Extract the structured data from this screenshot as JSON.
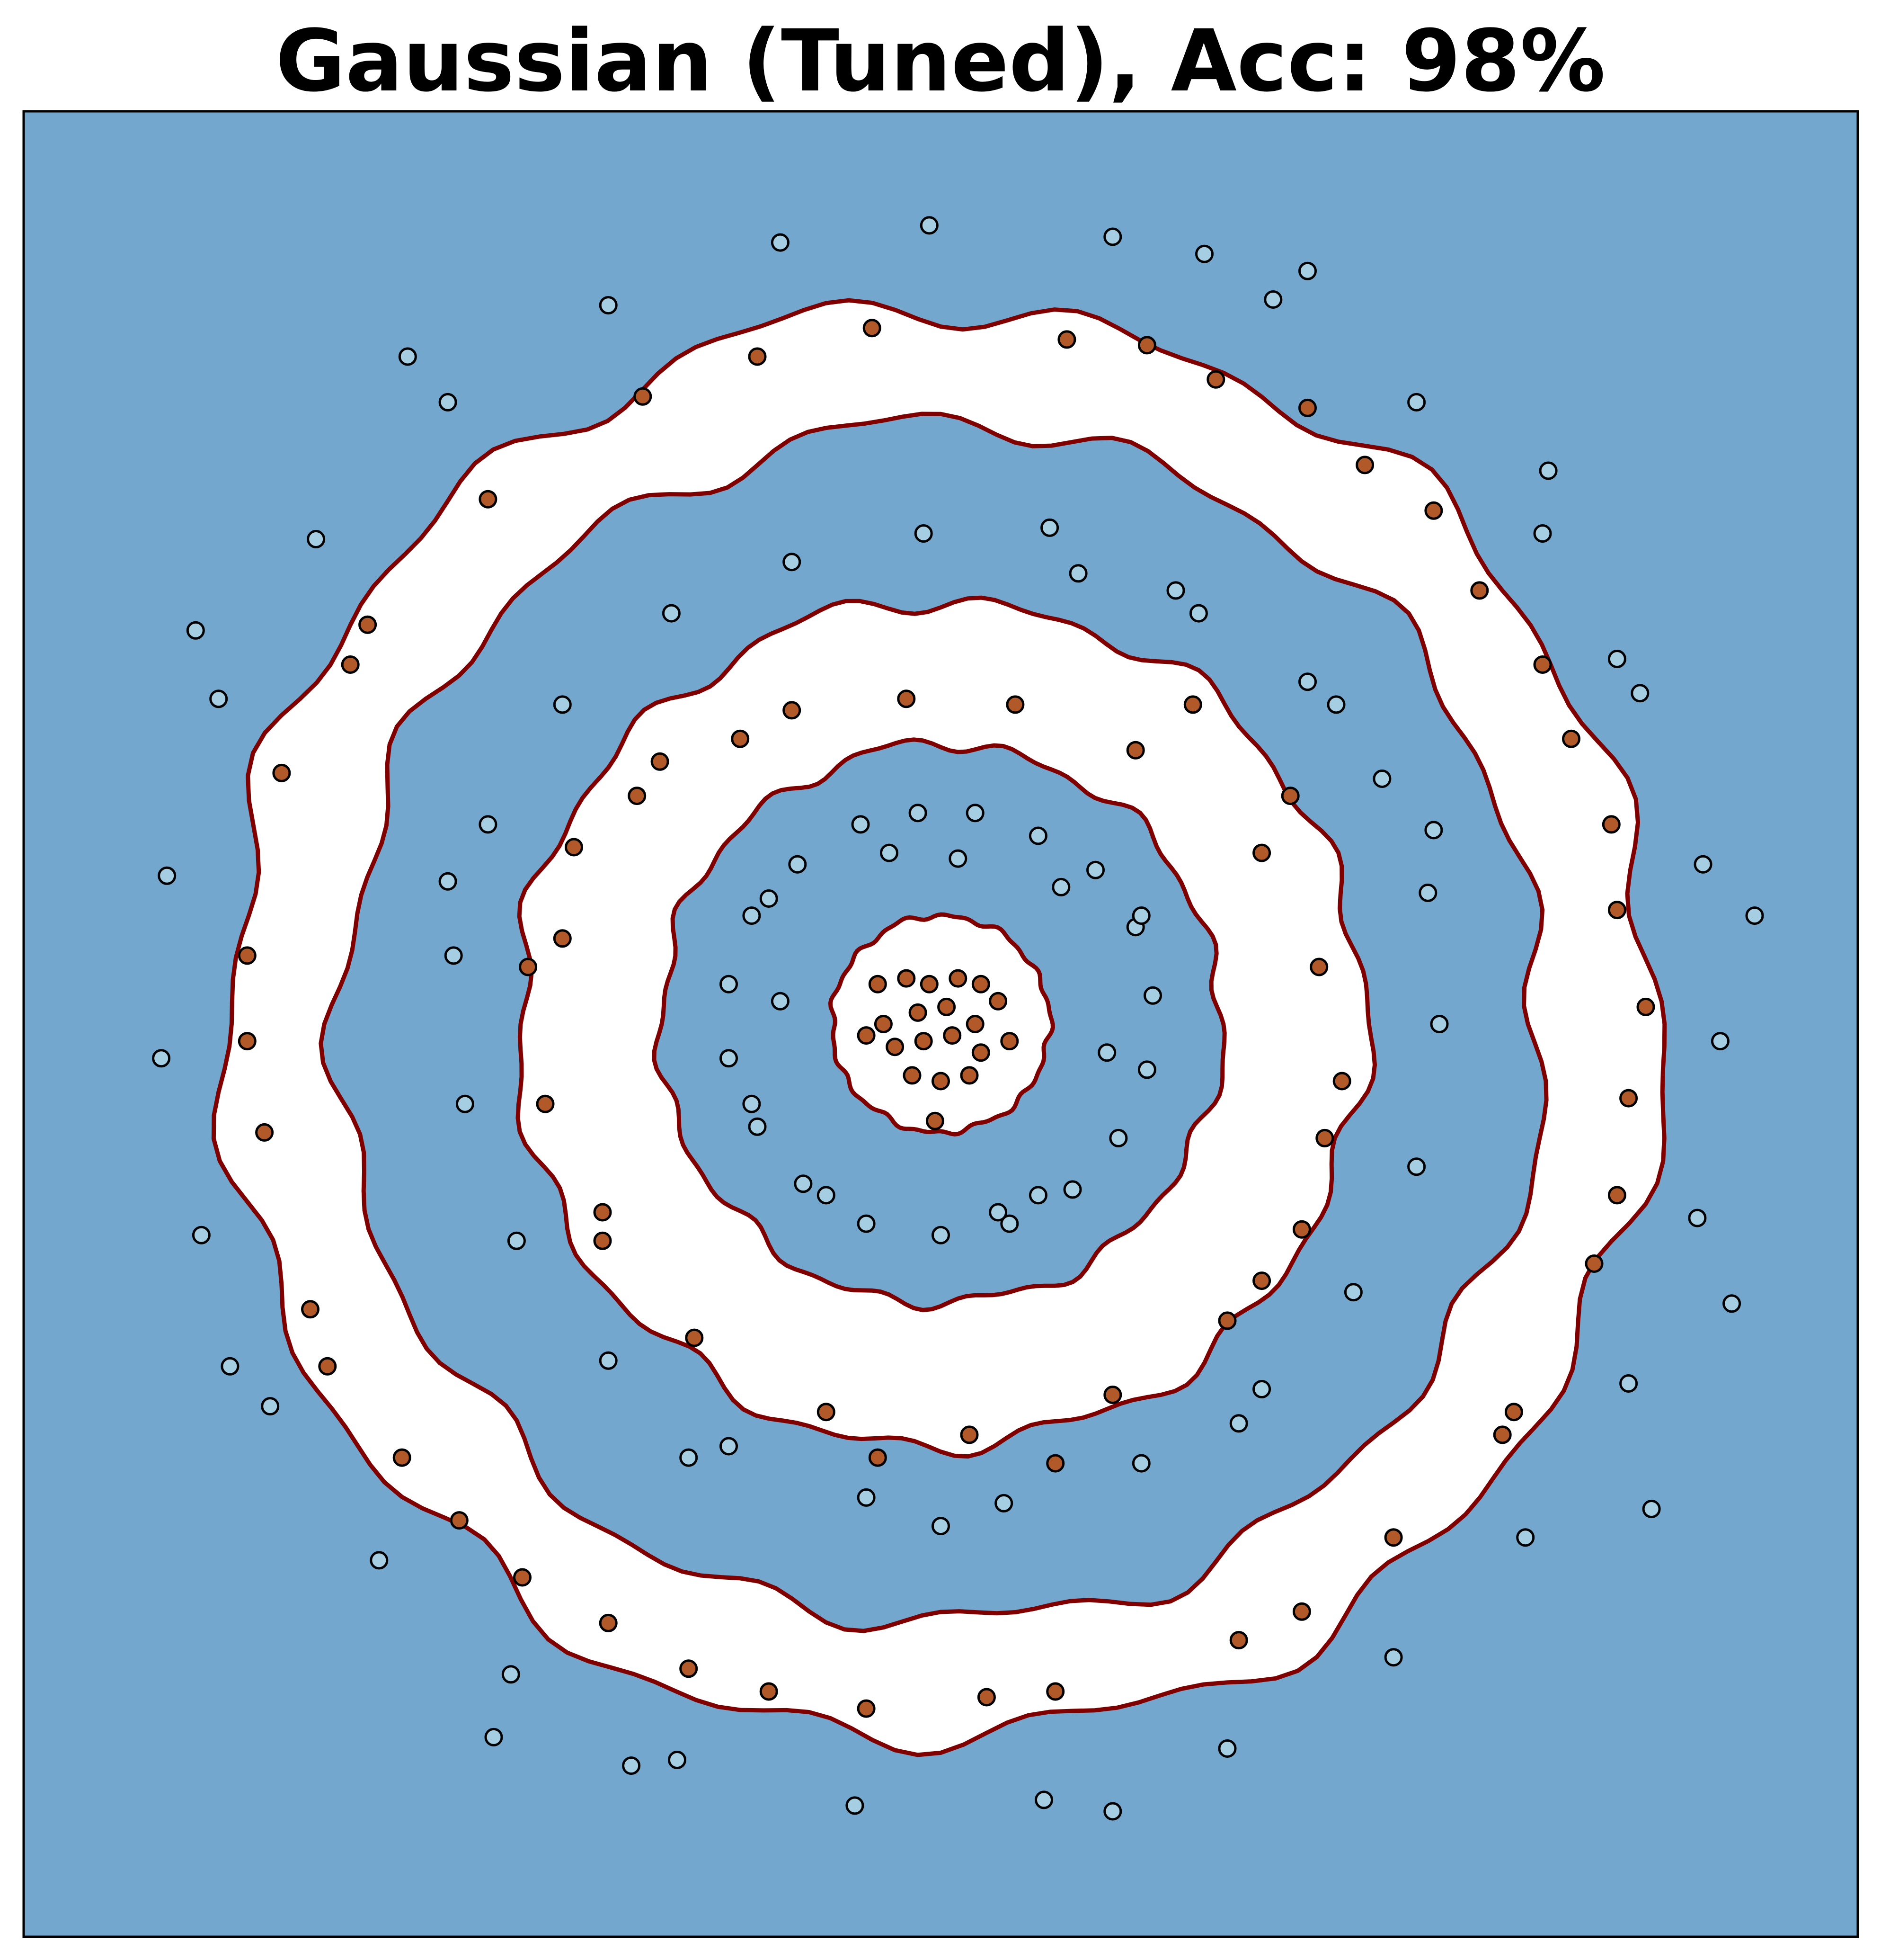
{
  "chart_data": {
    "type": "scatter",
    "title": "Gaussian (Tuned), Acc: 98%",
    "xlabel": "",
    "ylabel": "",
    "show_ticks": false,
    "grid": false,
    "legend": "none",
    "xlim": [
      -1.6,
      1.6
    ],
    "ylim": [
      -1.6,
      1.6
    ],
    "colors": {
      "background_region": "#73a7cd",
      "decision_region": "#ffffff",
      "boundary": "#800000",
      "class_outer": "#a6cee3",
      "class_inner": "#b15928",
      "point_edge": "#000000"
    },
    "decision_bands": [
      {
        "label": "center",
        "r_inner": 0.0,
        "r_outer": 0.19
      },
      {
        "label": "middle ring",
        "r_inner": 0.49,
        "r_outer": 0.74
      },
      {
        "label": "outer ring",
        "r_inner": 1.05,
        "r_outer": 1.25
      }
    ],
    "series": [
      {
        "class": "inner",
        "points": [
          [
            -0.11,
            0.07
          ],
          [
            -0.06,
            0.08
          ],
          [
            -0.02,
            0.07
          ],
          [
            0.03,
            0.08
          ],
          [
            0.07,
            0.07
          ],
          [
            0.1,
            0.04
          ],
          [
            -0.1,
            0.0
          ],
          [
            -0.04,
            0.02
          ],
          [
            0.01,
            0.03
          ],
          [
            0.06,
            0.0
          ],
          [
            -0.08,
            -0.04
          ],
          [
            -0.03,
            -0.03
          ],
          [
            0.02,
            -0.02
          ],
          [
            0.07,
            -0.05
          ],
          [
            -0.05,
            -0.09
          ],
          [
            0.0,
            -0.1
          ],
          [
            0.05,
            -0.09
          ],
          [
            -0.01,
            -0.17
          ],
          [
            0.12,
            -0.03
          ],
          [
            -0.13,
            -0.02
          ],
          [
            -0.06,
            0.57
          ],
          [
            0.13,
            0.56
          ],
          [
            0.34,
            0.48
          ],
          [
            0.56,
            0.3
          ],
          [
            0.66,
            0.1
          ],
          [
            0.7,
            -0.1
          ],
          [
            0.63,
            -0.36
          ],
          [
            0.5,
            -0.52
          ],
          [
            0.3,
            -0.65
          ],
          [
            0.05,
            -0.72
          ],
          [
            -0.2,
            -0.68
          ],
          [
            -0.43,
            -0.55
          ],
          [
            -0.59,
            -0.38
          ],
          [
            -0.69,
            -0.14
          ],
          [
            -0.72,
            0.1
          ],
          [
            -0.64,
            0.31
          ],
          [
            -0.49,
            0.46
          ],
          [
            -0.26,
            0.55
          ],
          [
            0.44,
            0.56
          ],
          [
            -0.35,
            0.5
          ],
          [
            -0.53,
            0.4
          ],
          [
            0.67,
            -0.2
          ],
          [
            -0.59,
            -0.33
          ],
          [
            0.2,
            -0.77
          ],
          [
            -0.11,
            -0.76
          ],
          [
            0.56,
            -0.45
          ],
          [
            -0.66,
            0.15
          ],
          [
            0.61,
            0.4
          ],
          [
            -0.12,
            1.22
          ],
          [
            0.22,
            1.2
          ],
          [
            0.48,
            1.13
          ],
          [
            0.74,
            0.98
          ],
          [
            0.94,
            0.76
          ],
          [
            1.1,
            0.5
          ],
          [
            1.18,
            0.2
          ],
          [
            1.2,
            -0.13
          ],
          [
            1.14,
            -0.42
          ],
          [
            1.0,
            -0.68
          ],
          [
            0.79,
            -0.9
          ],
          [
            0.52,
            -1.08
          ],
          [
            0.2,
            -1.17
          ],
          [
            -0.13,
            -1.2
          ],
          [
            -0.44,
            -1.13
          ],
          [
            -0.73,
            -0.97
          ],
          [
            -0.94,
            -0.76
          ],
          [
            -1.1,
            -0.5
          ],
          [
            -1.18,
            -0.19
          ],
          [
            -1.21,
            0.12
          ],
          [
            -1.15,
            0.44
          ],
          [
            -1.0,
            0.7
          ],
          [
            -0.79,
            0.92
          ],
          [
            -0.52,
            1.1
          ],
          [
            -0.32,
            1.17
          ],
          [
            0.36,
            1.19
          ],
          [
            0.64,
            1.08
          ],
          [
            0.86,
            0.9
          ],
          [
            1.05,
            0.63
          ],
          [
            1.17,
            0.35
          ],
          [
            1.23,
            0.03
          ],
          [
            1.18,
            -0.3
          ],
          [
            -1.03,
            0.63
          ],
          [
            -1.21,
            -0.03
          ],
          [
            -1.07,
            -0.6
          ],
          [
            -0.84,
            -0.87
          ],
          [
            0.63,
            -1.03
          ],
          [
            -0.3,
            -1.17
          ],
          [
            0.98,
            -0.72
          ],
          [
            0.08,
            -1.18
          ],
          [
            -0.58,
            -1.05
          ]
        ]
      },
      {
        "class": "outer",
        "points": [
          [
            0.06,
            0.37
          ],
          [
            0.17,
            0.33
          ],
          [
            0.27,
            0.27
          ],
          [
            0.34,
            0.17
          ],
          [
            0.37,
            0.05
          ],
          [
            0.36,
            -0.08
          ],
          [
            0.31,
            -0.2
          ],
          [
            0.23,
            -0.29
          ],
          [
            0.12,
            -0.35
          ],
          [
            0.0,
            -0.37
          ],
          [
            -0.13,
            -0.35
          ],
          [
            -0.24,
            -0.28
          ],
          [
            -0.32,
            -0.18
          ],
          [
            -0.37,
            -0.06
          ],
          [
            -0.37,
            0.07
          ],
          [
            -0.33,
            0.19
          ],
          [
            -0.25,
            0.28
          ],
          [
            -0.14,
            0.35
          ],
          [
            -0.04,
            0.37
          ],
          [
            0.21,
            0.24
          ],
          [
            -0.28,
            0.04
          ],
          [
            0.29,
            -0.05
          ],
          [
            0.17,
            -0.3
          ],
          [
            -0.2,
            -0.3
          ],
          [
            -0.3,
            0.22
          ],
          [
            0.03,
            0.29
          ],
          [
            -0.33,
            -0.14
          ],
          [
            0.1,
            -0.33
          ],
          [
            -0.09,
            0.3
          ],
          [
            0.35,
            0.19
          ],
          [
            0.24,
            0.79
          ],
          [
            0.45,
            0.72
          ],
          [
            0.64,
            0.6
          ],
          [
            0.77,
            0.43
          ],
          [
            0.85,
            0.23
          ],
          [
            0.87,
            0.0
          ],
          [
            0.83,
            -0.25
          ],
          [
            0.72,
            -0.47
          ],
          [
            0.56,
            -0.64
          ],
          [
            0.35,
            -0.77
          ],
          [
            0.11,
            -0.84
          ],
          [
            -0.13,
            -0.83
          ],
          [
            -0.37,
            -0.74
          ],
          [
            -0.58,
            -0.59
          ],
          [
            -0.74,
            -0.38
          ],
          [
            -0.83,
            -0.14
          ],
          [
            -0.85,
            0.12
          ],
          [
            -0.79,
            0.35
          ],
          [
            -0.66,
            0.56
          ],
          [
            -0.47,
            0.72
          ],
          [
            -0.26,
            0.81
          ],
          [
            -0.03,
            0.86
          ],
          [
            0.19,
            0.87
          ],
          [
            0.41,
            0.76
          ],
          [
            0.69,
            0.56
          ],
          [
            0.86,
            0.34
          ],
          [
            -0.86,
            0.25
          ],
          [
            0.52,
            -0.7
          ],
          [
            -0.44,
            -0.76
          ],
          [
            0.0,
            -0.88
          ],
          [
            -0.02,
            1.4
          ],
          [
            0.3,
            1.38
          ],
          [
            0.58,
            1.27
          ],
          [
            0.83,
            1.09
          ],
          [
            1.05,
            0.86
          ],
          [
            1.22,
            0.58
          ],
          [
            1.33,
            0.28
          ],
          [
            1.36,
            -0.03
          ],
          [
            1.32,
            -0.34
          ],
          [
            1.2,
            -0.63
          ],
          [
            1.02,
            -0.9
          ],
          [
            0.79,
            -1.11
          ],
          [
            0.5,
            -1.27
          ],
          [
            0.18,
            -1.36
          ],
          [
            -0.15,
            -1.37
          ],
          [
            -0.46,
            -1.29
          ],
          [
            -0.75,
            -1.14
          ],
          [
            -0.98,
            -0.94
          ],
          [
            -1.17,
            -0.67
          ],
          [
            -1.29,
            -0.37
          ],
          [
            -1.36,
            -0.06
          ],
          [
            -1.35,
            0.26
          ],
          [
            -1.26,
            0.57
          ],
          [
            -1.09,
            0.85
          ],
          [
            -0.86,
            1.09
          ],
          [
            -0.58,
            1.26
          ],
          [
            -0.28,
            1.37
          ],
          [
            0.64,
            1.32
          ],
          [
            1.06,
            0.97
          ],
          [
            1.42,
            0.19
          ],
          [
            1.24,
            -0.85
          ],
          [
            0.3,
            -1.38
          ],
          [
            -0.54,
            -1.3
          ],
          [
            -1.24,
            -0.6
          ],
          [
            -1.3,
            0.69
          ],
          [
            -0.93,
            1.17
          ],
          [
            0.46,
            1.35
          ],
          [
            1.38,
            -0.49
          ],
          [
            -0.78,
            -1.25
          ],
          [
            1.18,
            0.64
          ]
        ]
      }
    ]
  }
}
